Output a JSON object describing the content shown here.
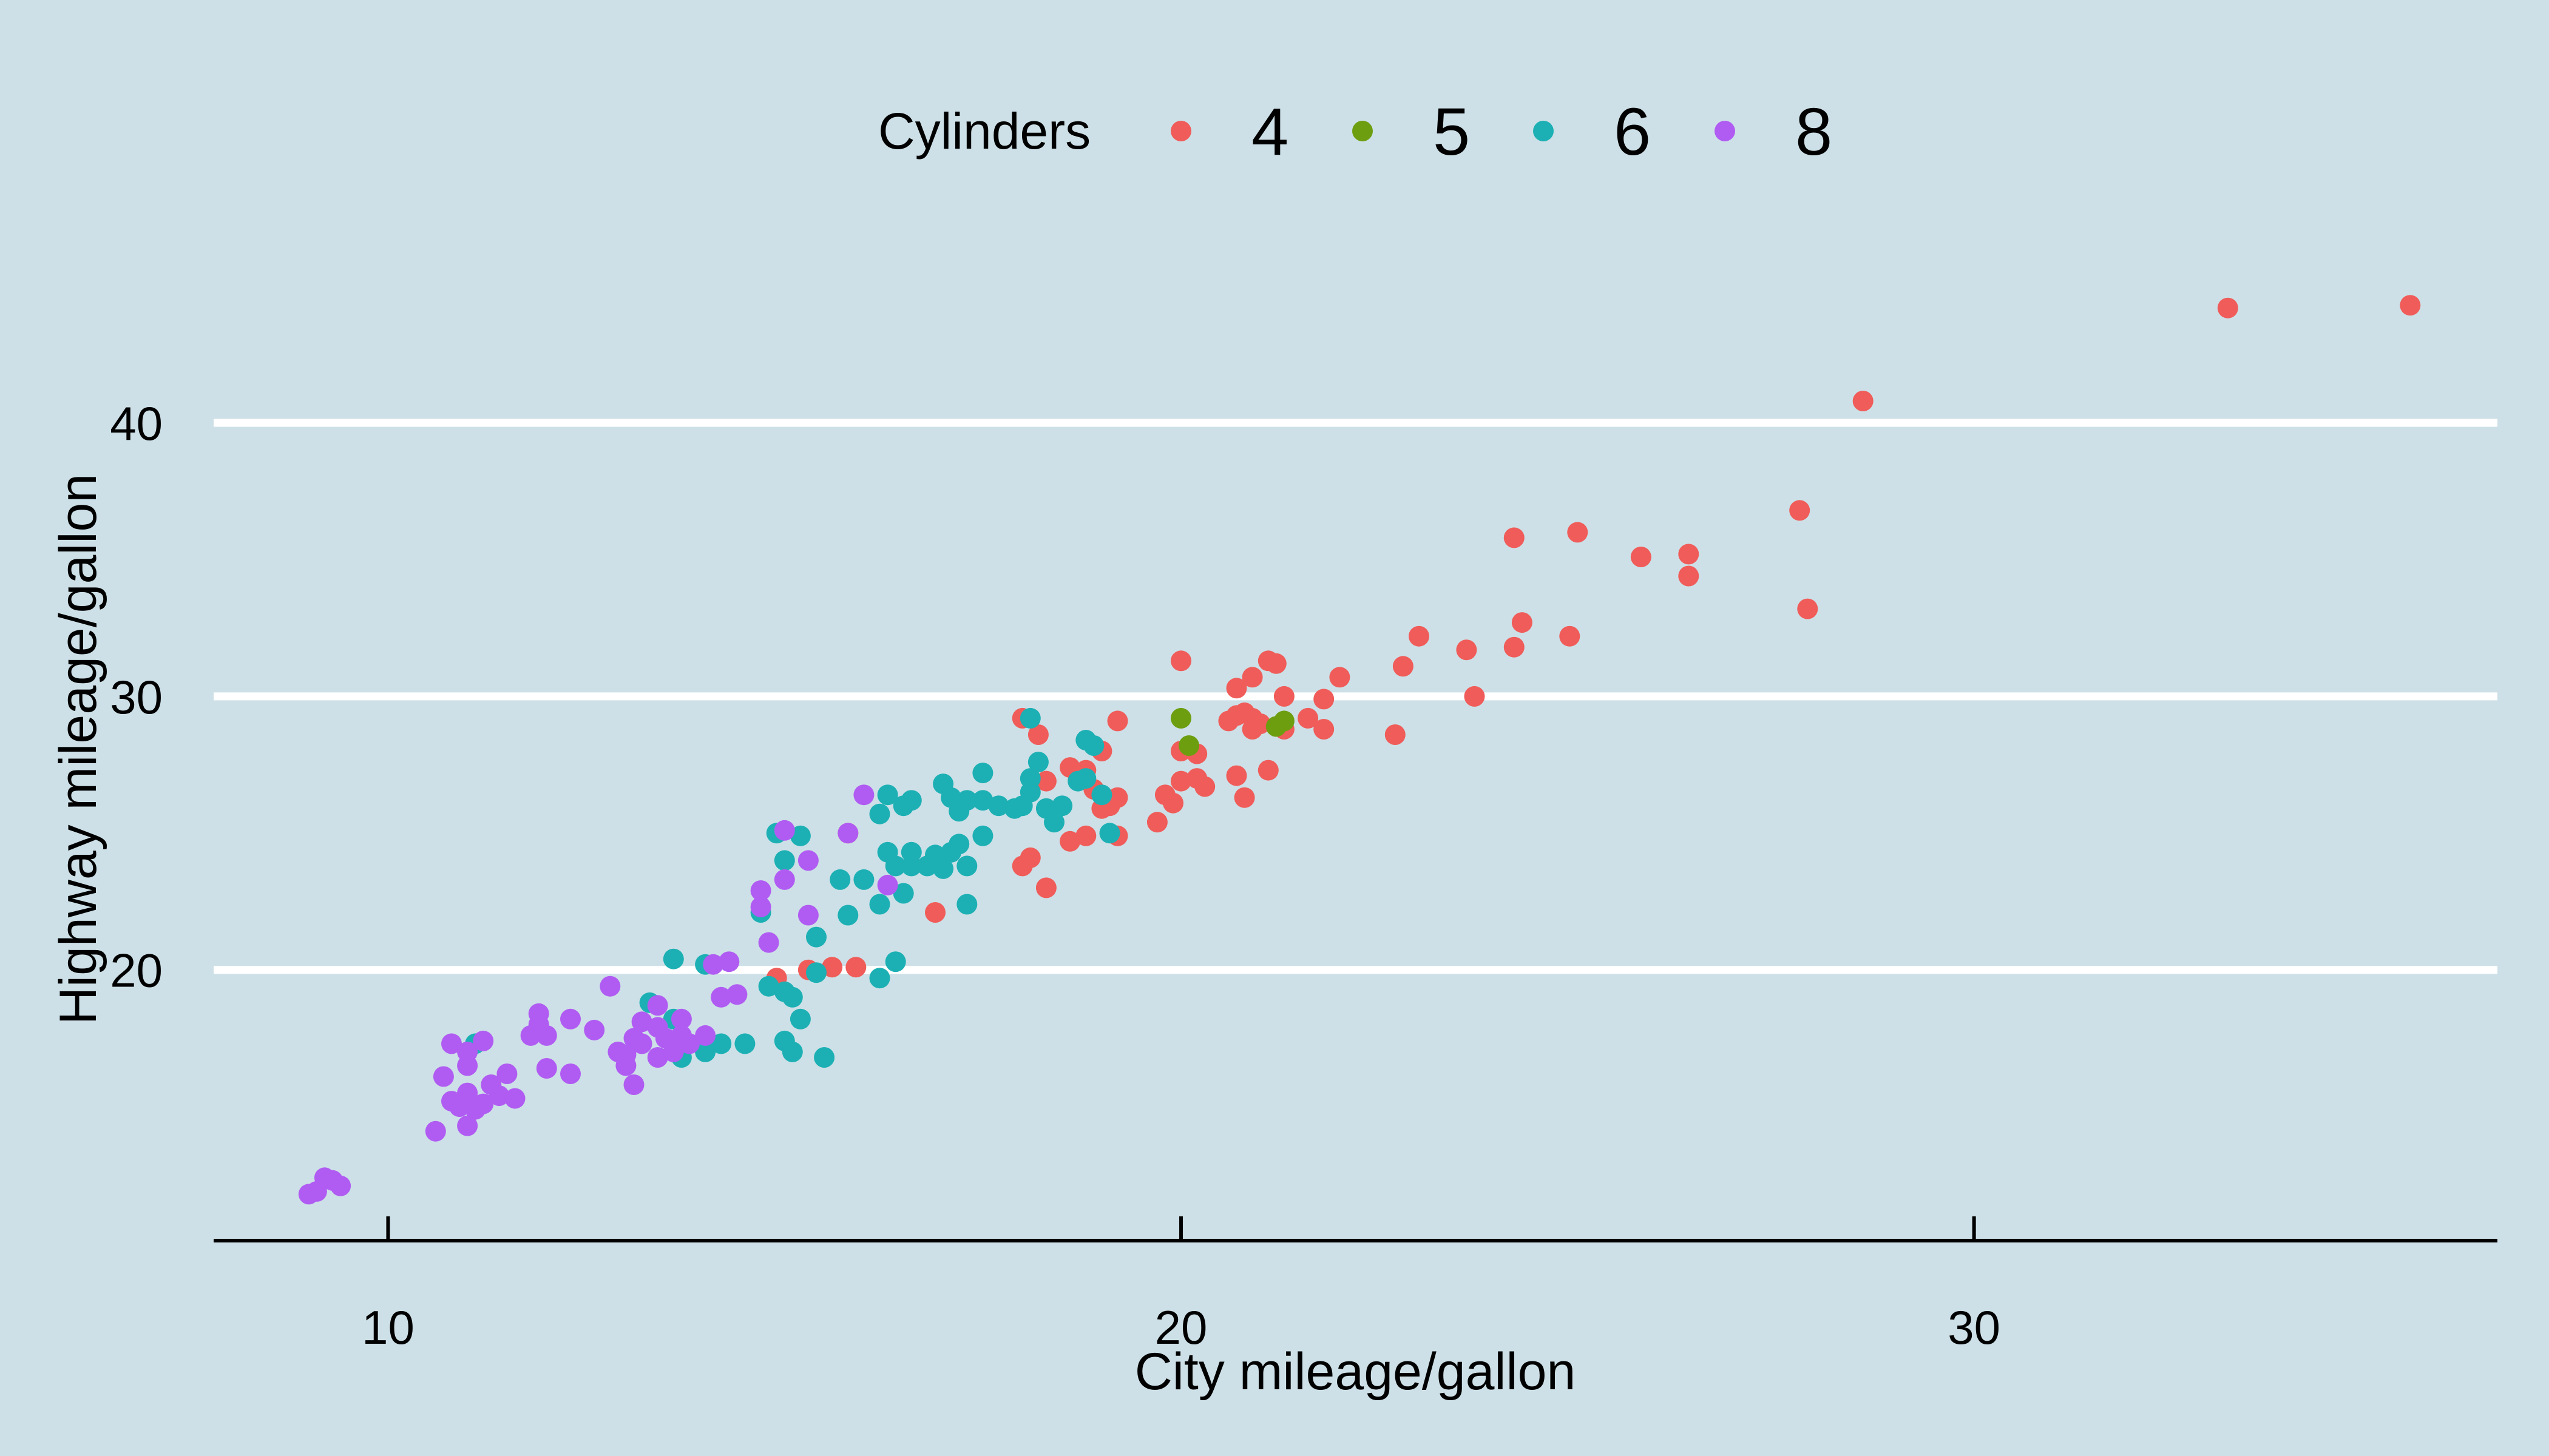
{
  "colors": {
    "background": "#cde0e7",
    "gridline": "#ffffff",
    "axis": "#000000",
    "cyl_4": "#f05c59",
    "cyl_5": "#6d9e10",
    "cyl_6": "#1cb0b4",
    "cyl_8": "#b05cf2"
  },
  "chart_data": {
    "type": "scatter",
    "title": "",
    "xlabel": "City mileage/gallon",
    "ylabel": "Highway mileage/gallon",
    "xlim": [
      7.8,
      36.6
    ],
    "ylim": [
      10.1,
      46.7
    ],
    "x_ticks": [
      10,
      20,
      30
    ],
    "y_ticks": [
      20,
      30,
      40
    ],
    "x_tick_labels": [
      "10",
      "20",
      "30"
    ],
    "y_tick_labels": [
      "20",
      "30",
      "40"
    ],
    "grid": "horizontal major only",
    "legend": {
      "position": "top",
      "title": "Cylinders",
      "entries": [
        "4",
        "5",
        "6",
        "8"
      ]
    },
    "series": [
      {
        "name": "4",
        "points": [
          [
            33.2,
            44.2
          ],
          [
            35.5,
            44.3
          ],
          [
            28.6,
            40.8
          ],
          [
            27.8,
            36.8
          ],
          [
            27.9,
            33.2
          ],
          [
            26.4,
            35.2
          ],
          [
            26.4,
            34.4
          ],
          [
            25.8,
            35.1
          ],
          [
            25.0,
            36.0
          ],
          [
            24.2,
            35.8
          ],
          [
            24.3,
            32.7
          ],
          [
            24.2,
            31.8
          ],
          [
            24.9,
            32.2
          ],
          [
            23.6,
            31.7
          ],
          [
            23.7,
            30.0
          ],
          [
            23.0,
            32.2
          ],
          [
            22.8,
            31.1
          ],
          [
            22.7,
            28.6
          ],
          [
            22.0,
            30.7
          ],
          [
            21.8,
            29.9
          ],
          [
            21.8,
            28.8
          ],
          [
            21.6,
            29.2
          ],
          [
            21.3,
            30.0
          ],
          [
            21.1,
            31.3
          ],
          [
            21.2,
            31.2
          ],
          [
            20.9,
            30.7
          ],
          [
            20.7,
            30.3
          ],
          [
            20.0,
            31.3
          ],
          [
            20.8,
            29.4
          ],
          [
            20.6,
            29.1
          ],
          [
            20.9,
            29.2
          ],
          [
            21.0,
            29.0
          ],
          [
            21.3,
            28.8
          ],
          [
            20.7,
            29.3
          ],
          [
            20.9,
            28.8
          ],
          [
            21.1,
            27.3
          ],
          [
            20.7,
            27.1
          ],
          [
            20.8,
            26.3
          ],
          [
            20.3,
            26.7
          ],
          [
            20.2,
            27.0
          ],
          [
            20.0,
            26.9
          ],
          [
            19.8,
            26.4
          ],
          [
            20.0,
            28.0
          ],
          [
            20.2,
            27.9
          ],
          [
            19.2,
            29.1
          ],
          [
            19.9,
            26.1
          ],
          [
            19.0,
            28.0
          ],
          [
            18.8,
            27.3
          ],
          [
            18.6,
            27.4
          ],
          [
            18.9,
            26.6
          ],
          [
            19.1,
            26.0
          ],
          [
            19.2,
            26.3
          ],
          [
            19.0,
            25.9
          ],
          [
            19.2,
            24.9
          ],
          [
            18.8,
            24.9
          ],
          [
            19.7,
            25.4
          ],
          [
            18.6,
            24.7
          ],
          [
            18.0,
            29.2
          ],
          [
            18.2,
            28.6
          ],
          [
            18.3,
            26.9
          ],
          [
            18.1,
            24.1
          ],
          [
            18.0,
            23.8
          ],
          [
            18.3,
            23.0
          ],
          [
            16.9,
            22.1
          ],
          [
            15.8,
            25.0
          ],
          [
            15.6,
            20.1
          ],
          [
            15.9,
            20.1
          ],
          [
            15.3,
            20.0
          ],
          [
            14.9,
            19.7
          ]
        ]
      },
      {
        "name": "5",
        "points": [
          [
            20.0,
            29.2
          ],
          [
            20.1,
            28.2
          ],
          [
            21.2,
            28.9
          ],
          [
            21.3,
            29.1
          ]
        ]
      },
      {
        "name": "6",
        "points": [
          [
            18.1,
            29.2
          ],
          [
            18.8,
            28.4
          ],
          [
            18.9,
            28.2
          ],
          [
            18.2,
            27.6
          ],
          [
            17.5,
            27.2
          ],
          [
            18.1,
            27.0
          ],
          [
            18.8,
            27.0
          ],
          [
            18.7,
            26.9
          ],
          [
            17.0,
            26.8
          ],
          [
            16.3,
            26.4
          ],
          [
            16.6,
            26.2
          ],
          [
            17.1,
            26.3
          ],
          [
            17.3,
            26.2
          ],
          [
            17.5,
            26.2
          ],
          [
            17.7,
            26.0
          ],
          [
            17.9,
            25.9
          ],
          [
            18.3,
            25.9
          ],
          [
            18.0,
            26.0
          ],
          [
            18.5,
            26.0
          ],
          [
            18.4,
            25.4
          ],
          [
            18.1,
            26.5
          ],
          [
            19.0,
            26.4
          ],
          [
            19.1,
            25.0
          ],
          [
            16.5,
            26.0
          ],
          [
            16.2,
            25.7
          ],
          [
            17.2,
            25.8
          ],
          [
            17.5,
            24.9
          ],
          [
            17.2,
            24.6
          ],
          [
            17.1,
            24.3
          ],
          [
            16.9,
            24.0
          ],
          [
            16.6,
            24.3
          ],
          [
            16.6,
            23.8
          ],
          [
            16.8,
            23.8
          ],
          [
            16.9,
            24.2
          ],
          [
            17.0,
            23.7
          ],
          [
            17.3,
            23.8
          ],
          [
            16.4,
            23.8
          ],
          [
            16.3,
            24.3
          ],
          [
            16.0,
            23.3
          ],
          [
            15.7,
            23.3
          ],
          [
            15.0,
            24.0
          ],
          [
            15.2,
            24.9
          ],
          [
            14.9,
            25.0
          ],
          [
            16.2,
            22.4
          ],
          [
            15.8,
            22.0
          ],
          [
            16.5,
            22.8
          ],
          [
            17.3,
            22.4
          ],
          [
            15.4,
            21.2
          ],
          [
            14.7,
            22.1
          ],
          [
            16.4,
            20.3
          ],
          [
            16.2,
            19.7
          ],
          [
            15.4,
            19.9
          ],
          [
            15.0,
            19.2
          ],
          [
            15.1,
            19.0
          ],
          [
            15.2,
            18.2
          ],
          [
            14.8,
            19.4
          ],
          [
            15.5,
            16.8
          ],
          [
            15.0,
            17.4
          ],
          [
            15.1,
            17.0
          ],
          [
            13.6,
            20.4
          ],
          [
            14.0,
            20.2
          ],
          [
            13.3,
            18.8
          ],
          [
            13.6,
            18.2
          ],
          [
            14.2,
            17.3
          ],
          [
            14.5,
            17.3
          ],
          [
            14.0,
            17.0
          ],
          [
            13.7,
            16.8
          ],
          [
            11.1,
            17.3
          ]
        ]
      },
      {
        "name": "8",
        "points": [
          [
            9.1,
            11.9
          ],
          [
            9.2,
            12.4
          ],
          [
            9.4,
            12.1
          ],
          [
            9.3,
            12.3
          ],
          [
            9.0,
            11.8
          ],
          [
            10.6,
            14.1
          ],
          [
            11.0,
            14.3
          ],
          [
            10.9,
            15.0
          ],
          [
            11.2,
            15.1
          ],
          [
            11.4,
            15.4
          ],
          [
            11.0,
            15.5
          ],
          [
            11.3,
            15.8
          ],
          [
            10.8,
            15.2
          ],
          [
            11.6,
            15.3
          ],
          [
            11.1,
            14.9
          ],
          [
            11.5,
            16.2
          ],
          [
            10.7,
            16.1
          ],
          [
            11.0,
            16.5
          ],
          [
            10.8,
            17.3
          ],
          [
            11.2,
            17.4
          ],
          [
            11.9,
            18.0
          ],
          [
            11.8,
            17.6
          ],
          [
            12.0,
            17.6
          ],
          [
            11.9,
            18.4
          ],
          [
            12.0,
            16.4
          ],
          [
            12.3,
            18.2
          ],
          [
            12.6,
            17.8
          ],
          [
            12.3,
            16.2
          ],
          [
            12.9,
            17.0
          ],
          [
            13.0,
            16.5
          ],
          [
            13.2,
            17.3
          ],
          [
            13.5,
            17.5
          ],
          [
            13.4,
            17.9
          ],
          [
            13.7,
            17.6
          ],
          [
            13.4,
            16.8
          ],
          [
            13.6,
            17.0
          ],
          [
            13.2,
            18.1
          ],
          [
            13.4,
            18.7
          ],
          [
            13.7,
            18.2
          ],
          [
            13.1,
            17.5
          ],
          [
            12.8,
            19.4
          ],
          [
            13.0,
            16.9
          ],
          [
            13.1,
            15.8
          ],
          [
            14.0,
            17.6
          ],
          [
            14.4,
            19.1
          ],
          [
            14.2,
            19.0
          ],
          [
            14.1,
            20.2
          ],
          [
            14.3,
            20.3
          ],
          [
            13.8,
            17.3
          ],
          [
            14.7,
            22.9
          ],
          [
            14.7,
            22.3
          ],
          [
            15.0,
            23.3
          ],
          [
            15.3,
            22.0
          ],
          [
            15.3,
            24.0
          ],
          [
            15.0,
            25.1
          ],
          [
            15.8,
            25.0
          ],
          [
            16.0,
            26.4
          ],
          [
            16.3,
            23.1
          ],
          [
            14.8,
            21.0
          ],
          [
            11.0,
            17.0
          ]
        ]
      }
    ]
  }
}
